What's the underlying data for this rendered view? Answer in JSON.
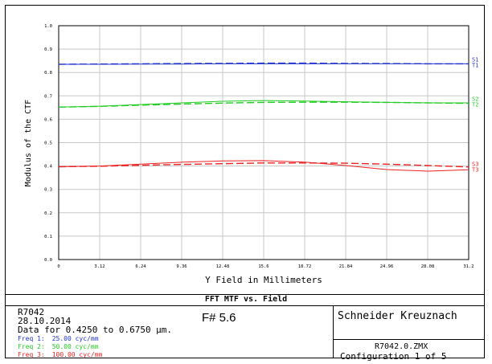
{
  "chart_data": {
    "type": "line",
    "title": "FFT MTF vs. Field",
    "xlabel": "Y Field in Millimeters",
    "ylabel": "Modulus of the CTF",
    "xlim": [
      0,
      31.2
    ],
    "ylim": [
      0,
      1.0
    ],
    "x_ticks": [
      "0",
      "3.12",
      "6.24",
      "9.36",
      "12.48",
      "15.6",
      "18.72",
      "21.84",
      "24.96",
      "28.08",
      "31.2"
    ],
    "y_ticks": [
      "0.0",
      "0.1",
      "0.2",
      "0.3",
      "0.4",
      "0.5",
      "0.6",
      "0.7",
      "0.8",
      "0.9",
      "1.0"
    ],
    "grid": true,
    "x": [
      0,
      3.12,
      6.24,
      9.36,
      12.48,
      15.6,
      18.72,
      21.84,
      24.96,
      28.08,
      31.2
    ],
    "series": [
      {
        "name": "S1",
        "color": "#2233cc",
        "dash": "dashed",
        "values": [
          0.835,
          0.836,
          0.837,
          0.838,
          0.839,
          0.84,
          0.84,
          0.839,
          0.838,
          0.837,
          0.837
        ]
      },
      {
        "name": "T1",
        "color": "#2233cc",
        "dash": "solid",
        "values": [
          0.835,
          0.835,
          0.836,
          0.836,
          0.837,
          0.837,
          0.837,
          0.837,
          0.837,
          0.837,
          0.837
        ]
      },
      {
        "name": "S2",
        "color": "#22cc22",
        "dash": "solid",
        "values": [
          0.652,
          0.656,
          0.663,
          0.67,
          0.677,
          0.68,
          0.678,
          0.675,
          0.672,
          0.67,
          0.67
        ]
      },
      {
        "name": "T2",
        "color": "#22cc22",
        "dash": "dashed",
        "values": [
          0.652,
          0.655,
          0.66,
          0.665,
          0.669,
          0.672,
          0.673,
          0.673,
          0.672,
          0.67,
          0.668
        ]
      },
      {
        "name": "S3",
        "color": "#ee2222",
        "dash": "dashed",
        "values": [
          0.397,
          0.399,
          0.403,
          0.407,
          0.41,
          0.413,
          0.413,
          0.412,
          0.408,
          0.402,
          0.396
        ]
      },
      {
        "name": "T3",
        "color": "#ee2222",
        "dash": "solid",
        "values": [
          0.397,
          0.4,
          0.408,
          0.416,
          0.422,
          0.423,
          0.417,
          0.402,
          0.385,
          0.378,
          0.384
        ]
      }
    ],
    "legend_placement": "right"
  },
  "info": {
    "lens_id": "R7042",
    "date": "28.10.2014",
    "data_for": "Data for 0.4250 to 0.6750 µm.",
    "fnumber": "F# 5.6",
    "freqs": [
      {
        "label": "Freq 1:",
        "value": "25.00 cyc/mm",
        "color": "#2233cc"
      },
      {
        "label": "Freq 2:",
        "value": "50.00 cyc/mm",
        "color": "#22cc22"
      },
      {
        "label": "Freq 3:",
        "value": "100.00 cyc/mm",
        "color": "#ee2222"
      }
    ],
    "company": "Schneider Kreuznach",
    "file": "R7042.0.ZMX",
    "configuration": "Configuration 1 of 5"
  }
}
